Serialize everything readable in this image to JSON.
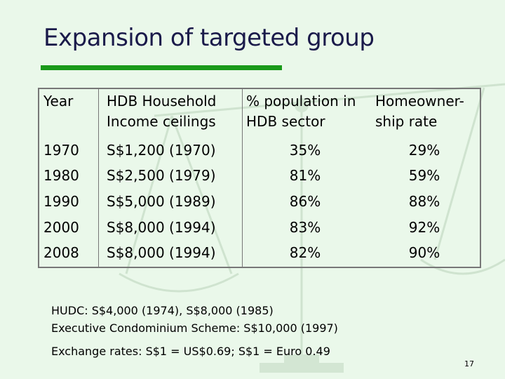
{
  "title": "Expansion of targeted group",
  "table": {
    "headers": {
      "year": "Year",
      "ceiling_line1": "HDB Household",
      "ceiling_line2": "Income ceilings",
      "population_line1": "% population in",
      "population_line2": "HDB sector",
      "homeownership_line1": "Homeowner-",
      "homeownership_line2": "ship rate"
    },
    "rows": [
      {
        "year": "1970",
        "ceiling": "S$1,200 (1970)",
        "population": "35%",
        "homeownership": "29%"
      },
      {
        "year": "1980",
        "ceiling": "S$2,500 (1979)",
        "population": "81%",
        "homeownership": "59%"
      },
      {
        "year": "1990",
        "ceiling": "S$5,000 (1989)",
        "population": "86%",
        "homeownership": "88%"
      },
      {
        "year": "2000",
        "ceiling": "S$8,000 (1994)",
        "population": "83%",
        "homeownership": "92%"
      },
      {
        "year": "2008",
        "ceiling": "S$8,000 (1994)",
        "population": "82%",
        "homeownership": "90%"
      }
    ]
  },
  "notes": {
    "hudc": "HUDC: S$4,000 (1974), S$8,000 (1985)",
    "ec": "Executive Condominium Scheme: S$10,000 (1997)",
    "exchange": "Exchange rates: S$1 = US$0.69; S$1 = Euro 0.49"
  },
  "page_number": "17",
  "colors": {
    "background": "#eaf8ea",
    "title": "#1a1a4a",
    "title_rule": "#1a9a1a",
    "watermark": "#cfe3cf"
  },
  "icons": {
    "watermark": "balance-scale-icon"
  }
}
